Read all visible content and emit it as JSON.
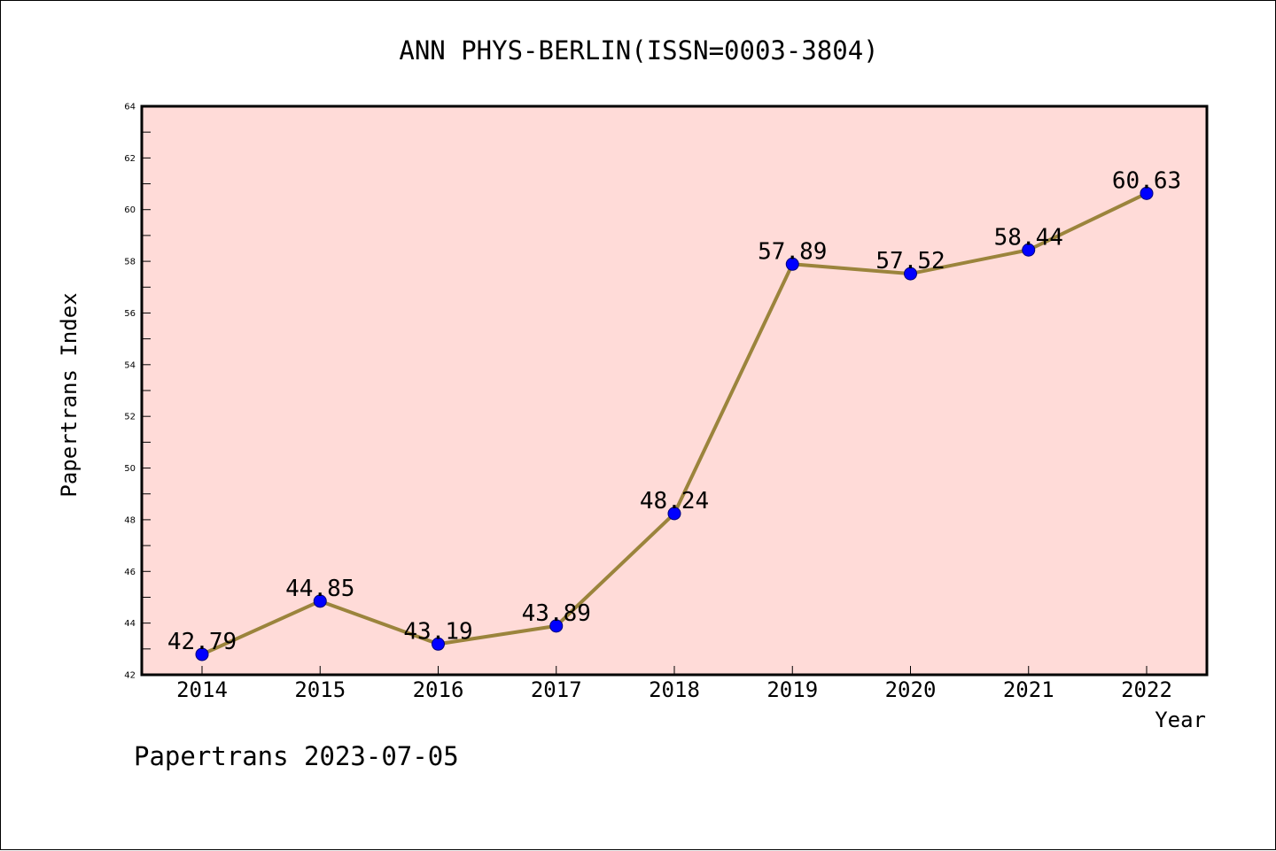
{
  "chart_data": {
    "type": "line",
    "title": "ANN PHYS-BERLIN(ISSN=0003-3804)",
    "xlabel": "Year",
    "ylabel": "Papertrans Index",
    "categories": [
      "2014",
      "2015",
      "2016",
      "2017",
      "2018",
      "2019",
      "2020",
      "2021",
      "2022"
    ],
    "series": [
      {
        "values": [
          42.79,
          44.85,
          43.19,
          43.89,
          48.24,
          57.89,
          57.52,
          58.44,
          60.63
        ],
        "labels": [
          "42.79",
          "44.85",
          "43.19",
          "43.89",
          "48.24",
          "57.89",
          "57.52",
          "58.44",
          "60.63"
        ]
      }
    ],
    "ylim": [
      42,
      64
    ],
    "yticks": [
      42,
      44,
      46,
      48,
      50,
      52,
      54,
      56,
      58,
      60,
      62,
      64
    ],
    "ytick_labels": [
      "42",
      "44",
      "46",
      "48",
      "50",
      "52",
      "54",
      "56",
      "58",
      "60",
      "62",
      "64"
    ],
    "grid": false,
    "legend": "none",
    "colors": {
      "plot_background": "#ffdbd8",
      "line": "#9b843c",
      "marker_fill": "#0000ff",
      "marker_stroke": "#00007a",
      "axis": "#000000"
    }
  },
  "footer": {
    "text": "Papertrans 2023-07-05"
  }
}
